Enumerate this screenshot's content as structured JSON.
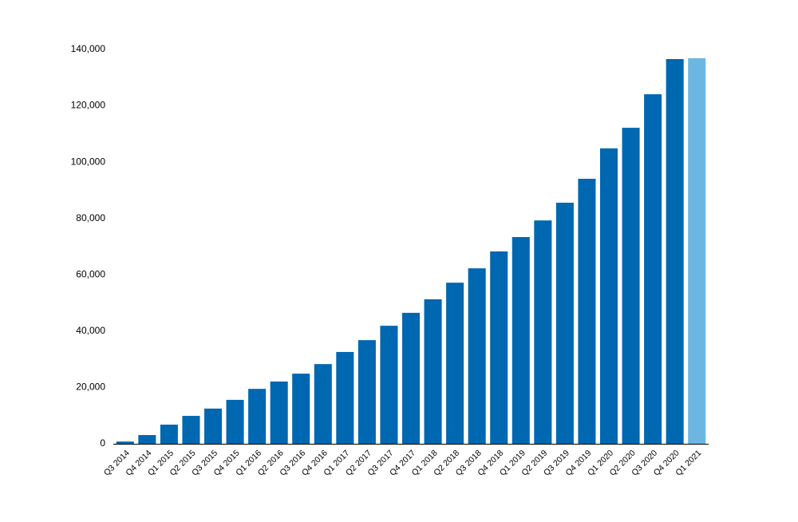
{
  "chart_data": {
    "type": "bar",
    "categories": [
      "Q3 2014",
      "Q4 2014",
      "Q1 2015",
      "Q2 2015",
      "Q3 2015",
      "Q4 2015",
      "Q1 2016",
      "Q2 2016",
      "Q3 2016",
      "Q4 2016",
      "Q1 2017",
      "Q2 2017",
      "Q3 2017",
      "Q4 2017",
      "Q1 2018",
      "Q2 2018",
      "Q3 2018",
      "Q4 2018",
      "Q1 2019",
      "Q2 2019",
      "Q3 2019",
      "Q4 2019",
      "Q1 2020",
      "Q2 2020",
      "Q3 2020",
      "Q4 2020",
      "Q1 2021"
    ],
    "values": [
      800,
      3100,
      6800,
      9900,
      12500,
      15600,
      19500,
      22100,
      24900,
      28300,
      32600,
      36800,
      41900,
      46500,
      51300,
      57200,
      62300,
      68300,
      73400,
      79300,
      85600,
      94100,
      104900,
      112200,
      124100,
      136600,
      136900
    ],
    "colors": [
      "#0067b1",
      "#0067b1",
      "#0067b1",
      "#0067b1",
      "#0067b1",
      "#0067b1",
      "#0067b1",
      "#0067b1",
      "#0067b1",
      "#0067b1",
      "#0067b1",
      "#0067b1",
      "#0067b1",
      "#0067b1",
      "#0067b1",
      "#0067b1",
      "#0067b1",
      "#0067b1",
      "#0067b1",
      "#0067b1",
      "#0067b1",
      "#0067b1",
      "#0067b1",
      "#0067b1",
      "#0067b1",
      "#0067b1",
      "#6cb6e2"
    ],
    "ylim": [
      0,
      140000
    ],
    "yticks": [
      0,
      {
        "value": 20000,
        "label": "20,000"
      },
      {
        "value": 40000,
        "label": "40,000"
      },
      {
        "value": 60000,
        "label": "60,000"
      },
      {
        "value": 80000,
        "label": "80,000"
      },
      {
        "value": 100000,
        "label": "100,000"
      },
      {
        "value": 120000,
        "label": "120,000"
      },
      {
        "value": 140000,
        "label": "140,000"
      }
    ],
    "grid": false
  }
}
